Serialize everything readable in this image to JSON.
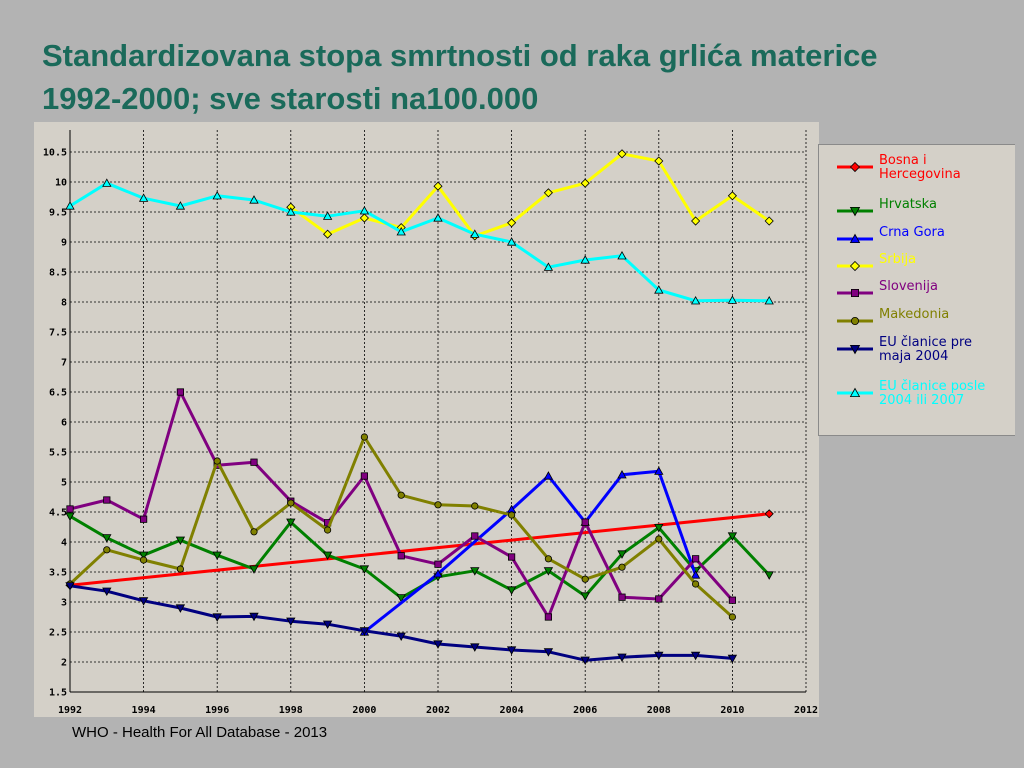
{
  "page": {
    "title": "Standardizovana stopa smrtnosti od raka grlića materice 1992-2000; sve starosti na100.000",
    "source": "WHO - Health For All Database - 2013"
  },
  "chart_data": {
    "type": "line",
    "title": "Standardizovana stopa smrtnosti od raka grlića materice 1992-2000; sve starosti na100.000",
    "xlabel": "",
    "ylabel": "",
    "xlim": [
      1992,
      2012
    ],
    "ylim": [
      1.5,
      10.75
    ],
    "xticks": [
      1992,
      1994,
      1996,
      1998,
      2000,
      2002,
      2004,
      2006,
      2008,
      2010,
      2012
    ],
    "xtick_labels": [
      "1992",
      "1994",
      "1996",
      "1998",
      "2000",
      "2002",
      "2004",
      "2006",
      "2008",
      "2010",
      "2012"
    ],
    "yticks": [
      1.5,
      2,
      2.5,
      3,
      3.5,
      4,
      4.5,
      5,
      5.5,
      6,
      6.5,
      7,
      7.5,
      8,
      8.5,
      9,
      9.5,
      10,
      10.5
    ],
    "ytick_labels": [
      "1.5",
      "2",
      "2.5",
      "3",
      "3.5",
      "4",
      "4.5",
      "5",
      "5.5",
      "6",
      "6.5",
      "7",
      "7.5",
      "8",
      "8.5",
      "9",
      "9.5",
      "10",
      "10.5"
    ],
    "grid": true,
    "legend_position": "right",
    "series": [
      {
        "name": "Bosna i Hercegovina",
        "color": "#ff0000",
        "marker": "diamond",
        "x": [
          1992,
          2011
        ],
        "y": [
          3.28,
          4.47
        ]
      },
      {
        "name": "Hrvatska",
        "color": "#008000",
        "marker": "triangle-down",
        "x": [
          1992,
          1993,
          1994,
          1995,
          1996,
          1997,
          1998,
          1999,
          2000,
          2001,
          2002,
          2003,
          2004,
          2005,
          2006,
          2007,
          2008,
          2009,
          2010,
          2011
        ],
        "y": [
          4.43,
          4.07,
          3.78,
          4.03,
          3.78,
          3.55,
          4.33,
          3.78,
          3.55,
          3.07,
          3.42,
          3.52,
          3.2,
          3.52,
          3.1,
          3.8,
          4.24,
          3.52,
          4.1,
          3.45
        ]
      },
      {
        "name": "Crna Gora",
        "color": "#0000ff",
        "marker": "triangle-up",
        "x": [
          2000,
          2002,
          2004,
          2005,
          2006,
          2007,
          2008,
          2009
        ],
        "y": [
          2.5,
          3.47,
          4.54,
          5.1,
          4.33,
          5.12,
          5.18,
          3.45
        ]
      },
      {
        "name": "Srbija",
        "color": "#ffff00",
        "marker": "diamond",
        "x": [
          1998,
          1999,
          2000,
          2001,
          2002,
          2003,
          2004,
          2005,
          2006,
          2007,
          2008,
          2009,
          2010,
          2011
        ],
        "y": [
          9.58,
          9.13,
          9.4,
          9.24,
          9.93,
          9.1,
          9.32,
          9.82,
          9.98,
          10.47,
          10.35,
          9.35,
          9.77,
          9.35
        ]
      },
      {
        "name": "Slovenija",
        "color": "#800080",
        "marker": "square",
        "x": [
          1992,
          1993,
          1994,
          1995,
          1996,
          1997,
          1998,
          1999,
          2000,
          2001,
          2002,
          2003,
          2004,
          2005,
          2006,
          2007,
          2008,
          2009,
          2010
        ],
        "y": [
          4.55,
          4.7,
          4.38,
          6.5,
          5.28,
          5.33,
          4.68,
          4.32,
          5.1,
          3.77,
          3.63,
          4.1,
          3.75,
          2.75,
          4.33,
          3.08,
          3.05,
          3.72,
          3.03
        ]
      },
      {
        "name": "Makedonia",
        "color": "#808000",
        "marker": "circle",
        "x": [
          1992,
          1993,
          1994,
          1995,
          1996,
          1997,
          1998,
          1999,
          2000,
          2001,
          2002,
          2003,
          2004,
          2005,
          2006,
          2007,
          2008,
          2009,
          2010
        ],
        "y": [
          3.3,
          3.87,
          3.7,
          3.55,
          5.35,
          4.17,
          4.65,
          4.2,
          5.75,
          4.78,
          4.62,
          4.6,
          4.45,
          3.72,
          3.38,
          3.58,
          4.05,
          3.3,
          2.75
        ]
      },
      {
        "name": "EU članice pre maja 2004",
        "color": "#000080",
        "marker": "triangle-down",
        "x": [
          1992,
          1993,
          1994,
          1995,
          1996,
          1997,
          1998,
          1999,
          2000,
          2001,
          2002,
          2003,
          2004,
          2005,
          2006,
          2007,
          2008,
          2009,
          2010
        ],
        "y": [
          3.27,
          3.18,
          3.02,
          2.9,
          2.75,
          2.76,
          2.68,
          2.63,
          2.52,
          2.43,
          2.3,
          2.25,
          2.2,
          2.17,
          2.03,
          2.08,
          2.11,
          2.11,
          2.06
        ]
      },
      {
        "name": "EU članice posle 2004 ili 2007",
        "color": "#00ffff",
        "marker": "triangle-up",
        "x": [
          1992,
          1993,
          1994,
          1995,
          1996,
          1997,
          1998,
          1999,
          2000,
          2001,
          2002,
          2003,
          2004,
          2005,
          2006,
          2007,
          2008,
          2009,
          2010,
          2011
        ],
        "y": [
          9.6,
          9.98,
          9.73,
          9.6,
          9.77,
          9.7,
          9.5,
          9.43,
          9.52,
          9.17,
          9.4,
          9.13,
          9.0,
          8.58,
          8.7,
          8.77,
          8.2,
          8.02,
          8.03,
          8.02
        ]
      }
    ]
  }
}
